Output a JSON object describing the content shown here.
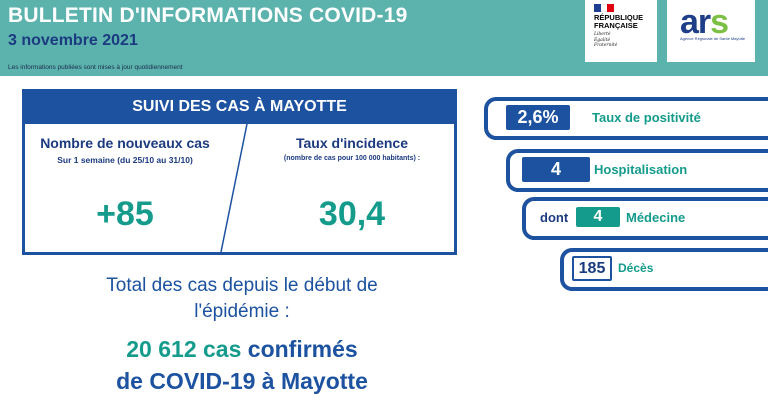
{
  "header": {
    "title": "BULLETIN D'INFORMATIONS COVID-19",
    "date": "3 novembre 2021",
    "update_note": "Les informations publiées sont mises à jour quotidiennement",
    "logo_rf": {
      "line1": "RÉPUBLIQUE",
      "line2": "FRANÇAISE",
      "motto1": "Liberté",
      "motto2": "Égalité",
      "motto3": "Fraternité"
    },
    "logo_ars": {
      "word_a": "ar",
      "word_s": "s",
      "sub": "Agence Régionale de Santé Mayotte"
    }
  },
  "colors": {
    "teal_header": "#5cb3ad",
    "navy": "#1c52a0",
    "dark_navy": "#1b3a80",
    "teal_number": "#149b8c",
    "ars_green": "#7bbf44"
  },
  "cases": {
    "panel_title": "SUIVI DES CAS À MAYOTTE",
    "new_cases": {
      "label": "Nombre de nouveaux cas",
      "sublabel": "Sur 1 semaine (du 25/10 au 31/10)",
      "value": "+85"
    },
    "incidence": {
      "label": "Taux d'incidence",
      "sublabel": "(nombre de cas pour 100 000 habitants) :",
      "value": "30,4"
    }
  },
  "total": {
    "line1": "Total des cas depuis le début de",
    "line2": "l'épidémie :",
    "count": "20 612 cas",
    "confirmed": "confirmés",
    "line4": "de COVID-19 à Mayotte"
  },
  "indicators": {
    "positivity": {
      "value": "2,6%",
      "label": "Taux de positivité"
    },
    "hospital": {
      "value": "4",
      "label": "Hospitalisation"
    },
    "medecine": {
      "prefix": "dont",
      "value": "4",
      "label": "Médecine"
    },
    "deaths": {
      "value": "185",
      "label": "Décès"
    }
  }
}
